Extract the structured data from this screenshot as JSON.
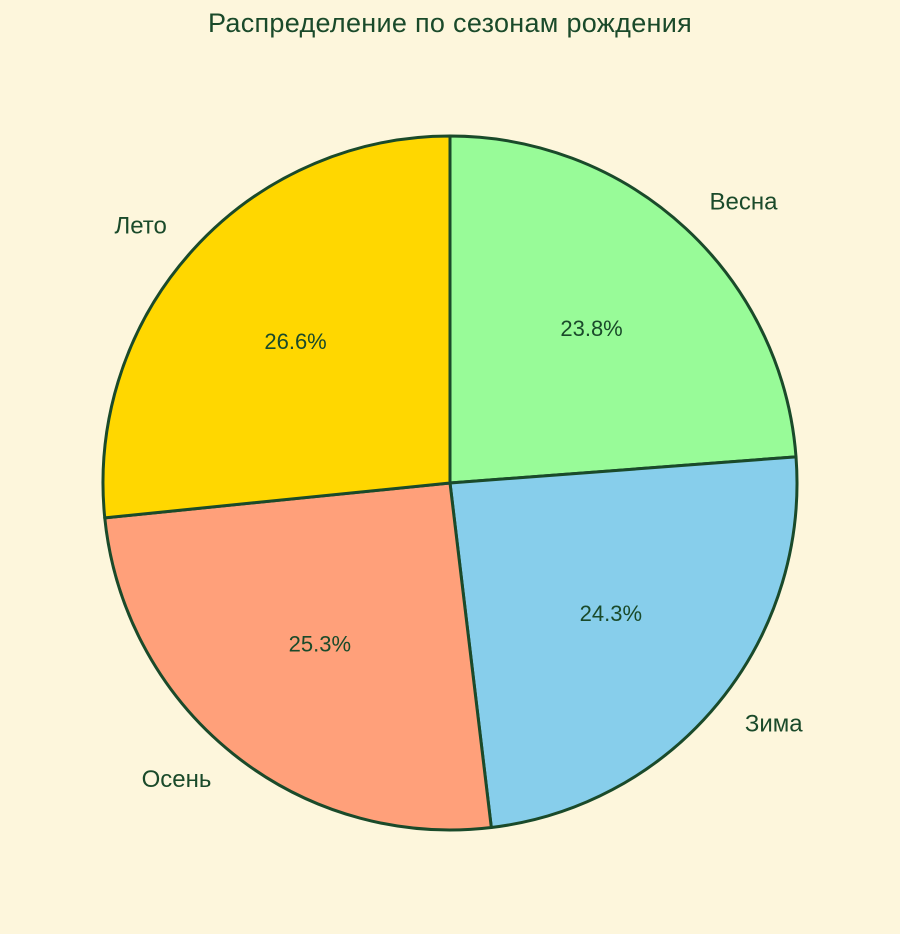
{
  "colors": {
    "background": "#fdf6dc",
    "edge": "#1a4a2a",
    "text": "#1a4a2a"
  },
  "chart_data": {
    "type": "pie",
    "title": "Распределение по сезонам рождения",
    "categories": [
      "Весна",
      "Зима",
      "Осень",
      "Лето"
    ],
    "values": [
      23.8,
      24.3,
      25.3,
      26.6
    ],
    "value_labels": [
      "23.8%",
      "24.3%",
      "25.3%",
      "26.6%"
    ],
    "slice_colors": [
      "#98fb98",
      "#87ceeb",
      "#ffa07a",
      "#ffd700"
    ],
    "start_angle_deg": 90,
    "direction": "clockwise",
    "legend": "none"
  }
}
